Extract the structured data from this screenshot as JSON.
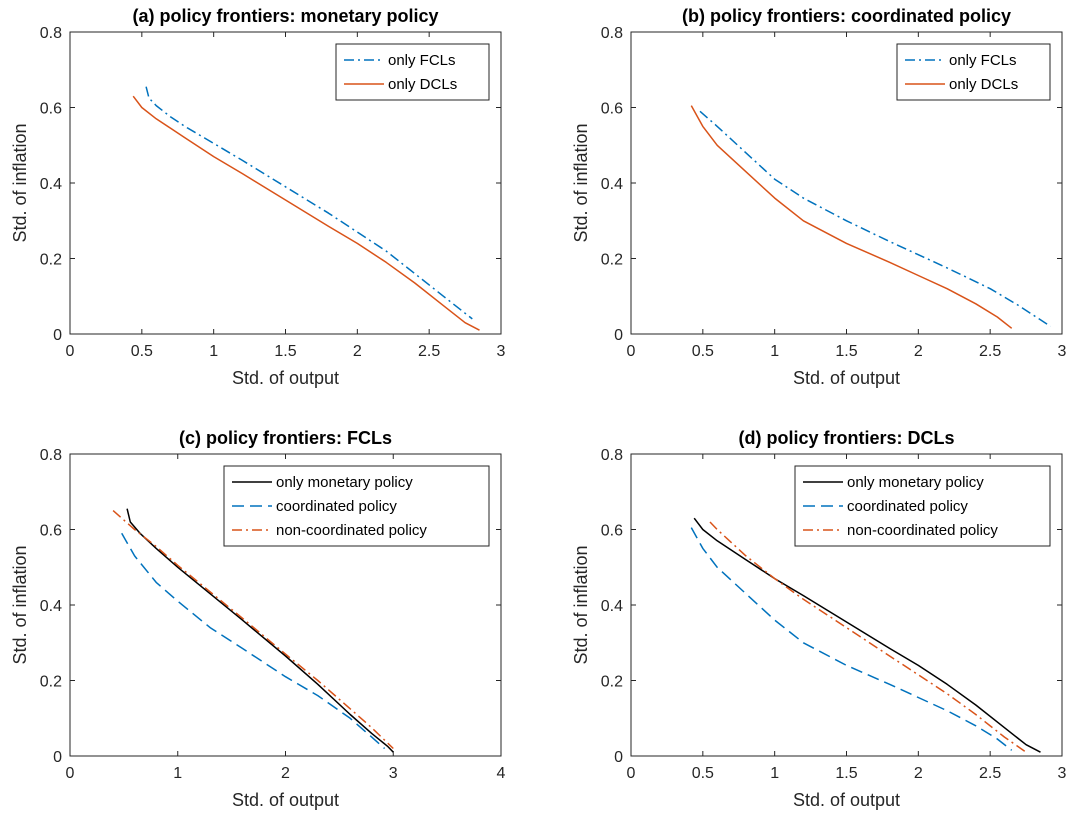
{
  "chart_data": [
    {
      "type": "line",
      "title": "(a) policy frontiers: monetary policy",
      "xlabel": "Std. of output",
      "ylabel": "Std. of inflation",
      "xlim": [
        0,
        3
      ],
      "ylim": [
        0,
        0.8
      ],
      "xticks": [
        "0",
        "0.5",
        "1",
        "1.5",
        "2",
        "2.5",
        "3"
      ],
      "yticks": [
        "0",
        "0.2",
        "0.4",
        "0.6",
        "0.8"
      ],
      "grid": false,
      "legend_position": "top-right",
      "series": [
        {
          "name": "only FCLs",
          "color": "#0072BD",
          "dash": "dashdot",
          "x": [
            0.53,
            0.55,
            0.6,
            0.7,
            0.8,
            1.0,
            1.2,
            1.5,
            1.8,
            2.0,
            2.2,
            2.4,
            2.6,
            2.8
          ],
          "y": [
            0.655,
            0.625,
            0.605,
            0.575,
            0.55,
            0.505,
            0.46,
            0.39,
            0.32,
            0.27,
            0.22,
            0.16,
            0.1,
            0.04
          ]
        },
        {
          "name": "only DCLs",
          "color": "#D95319",
          "dash": "solid",
          "x": [
            0.44,
            0.5,
            0.6,
            0.7,
            0.8,
            1.0,
            1.2,
            1.5,
            1.8,
            2.0,
            2.2,
            2.4,
            2.6,
            2.75,
            2.85
          ],
          "y": [
            0.63,
            0.6,
            0.57,
            0.545,
            0.52,
            0.47,
            0.425,
            0.355,
            0.285,
            0.24,
            0.19,
            0.135,
            0.075,
            0.03,
            0.01
          ]
        }
      ]
    },
    {
      "type": "line",
      "title": "(b) policy frontiers: coordinated policy",
      "xlabel": "Std. of output",
      "ylabel": "Std. of inflation",
      "xlim": [
        0,
        3
      ],
      "ylim": [
        0,
        0.8
      ],
      "xticks": [
        "0",
        "0.5",
        "1",
        "1.5",
        "2",
        "2.5",
        "3"
      ],
      "yticks": [
        "0",
        "0.2",
        "0.4",
        "0.6",
        "0.8"
      ],
      "grid": false,
      "legend_position": "top-right",
      "series": [
        {
          "name": "only FCLs",
          "color": "#0072BD",
          "dash": "dashdot",
          "x": [
            0.48,
            0.6,
            0.8,
            1.0,
            1.2,
            1.5,
            1.8,
            2.0,
            2.2,
            2.5,
            2.7,
            2.92
          ],
          "y": [
            0.59,
            0.55,
            0.48,
            0.41,
            0.36,
            0.3,
            0.245,
            0.21,
            0.175,
            0.12,
            0.075,
            0.02
          ]
        },
        {
          "name": "only DCLs",
          "color": "#D95319",
          "dash": "solid",
          "x": [
            0.42,
            0.5,
            0.6,
            0.8,
            1.0,
            1.2,
            1.5,
            1.8,
            2.0,
            2.2,
            2.4,
            2.55,
            2.65
          ],
          "y": [
            0.605,
            0.55,
            0.5,
            0.43,
            0.36,
            0.3,
            0.24,
            0.19,
            0.155,
            0.12,
            0.08,
            0.045,
            0.015
          ]
        }
      ]
    },
    {
      "type": "line",
      "title": "(c) policy frontiers: FCLs",
      "xlabel": "Std. of output",
      "ylabel": "Std. of inflation",
      "xlim": [
        0,
        4
      ],
      "ylim": [
        0,
        0.8
      ],
      "xticks": [
        "0",
        "1",
        "2",
        "3",
        "4"
      ],
      "yticks": [
        "0",
        "0.2",
        "0.4",
        "0.6",
        "0.8"
      ],
      "grid": false,
      "legend_position": "top-right",
      "series": [
        {
          "name": "only monetary policy",
          "color": "#000000",
          "dash": "solid",
          "x": [
            0.53,
            0.56,
            0.65,
            0.8,
            1.0,
            1.3,
            1.6,
            2.0,
            2.3,
            2.6,
            2.8,
            2.95,
            3.0
          ],
          "y": [
            0.655,
            0.62,
            0.59,
            0.55,
            0.5,
            0.43,
            0.36,
            0.265,
            0.19,
            0.11,
            0.06,
            0.025,
            0.01
          ]
        },
        {
          "name": "coordinated policy",
          "color": "#0072BD",
          "dash": "dashed",
          "x": [
            0.48,
            0.6,
            0.8,
            1.0,
            1.3,
            1.6,
            2.0,
            2.3,
            2.6,
            2.8,
            2.92
          ],
          "y": [
            0.59,
            0.53,
            0.46,
            0.41,
            0.34,
            0.285,
            0.21,
            0.16,
            0.1,
            0.05,
            0.02
          ]
        },
        {
          "name": "non-coordinated policy",
          "color": "#D95319",
          "dash": "dashdot",
          "x": [
            0.4,
            0.6,
            0.8,
            1.0,
            1.3,
            1.6,
            2.0,
            2.3,
            2.6,
            2.8,
            3.0
          ],
          "y": [
            0.65,
            0.6,
            0.555,
            0.505,
            0.435,
            0.365,
            0.27,
            0.2,
            0.125,
            0.075,
            0.02
          ]
        }
      ]
    },
    {
      "type": "line",
      "title": "(d) policy frontiers: DCLs",
      "xlabel": "Std. of output",
      "ylabel": "Std. of inflation",
      "xlim": [
        0,
        3
      ],
      "ylim": [
        0,
        0.8
      ],
      "xticks": [
        "0",
        "0.5",
        "1",
        "1.5",
        "2",
        "2.5",
        "3"
      ],
      "yticks": [
        "0",
        "0.2",
        "0.4",
        "0.6",
        "0.8"
      ],
      "grid": false,
      "legend_position": "top-right",
      "series": [
        {
          "name": "only monetary policy",
          "color": "#000000",
          "dash": "solid",
          "x": [
            0.44,
            0.5,
            0.6,
            0.8,
            1.0,
            1.2,
            1.5,
            1.8,
            2.0,
            2.2,
            2.4,
            2.6,
            2.75,
            2.85
          ],
          "y": [
            0.63,
            0.6,
            0.57,
            0.52,
            0.47,
            0.425,
            0.355,
            0.285,
            0.24,
            0.19,
            0.135,
            0.075,
            0.03,
            0.01
          ]
        },
        {
          "name": "coordinated policy",
          "color": "#0072BD",
          "dash": "dashed",
          "x": [
            0.42,
            0.5,
            0.6,
            0.8,
            1.0,
            1.2,
            1.5,
            1.8,
            2.0,
            2.2,
            2.4,
            2.55,
            2.65
          ],
          "y": [
            0.605,
            0.55,
            0.5,
            0.43,
            0.36,
            0.3,
            0.24,
            0.19,
            0.155,
            0.12,
            0.08,
            0.045,
            0.015
          ]
        },
        {
          "name": "non-coordinated policy",
          "color": "#D95319",
          "dash": "dashdot",
          "x": [
            0.55,
            0.6,
            0.8,
            1.0,
            1.2,
            1.5,
            1.8,
            2.0,
            2.2,
            2.4,
            2.6,
            2.75
          ],
          "y": [
            0.62,
            0.6,
            0.53,
            0.47,
            0.415,
            0.34,
            0.265,
            0.215,
            0.165,
            0.11,
            0.05,
            0.01
          ]
        }
      ]
    }
  ]
}
